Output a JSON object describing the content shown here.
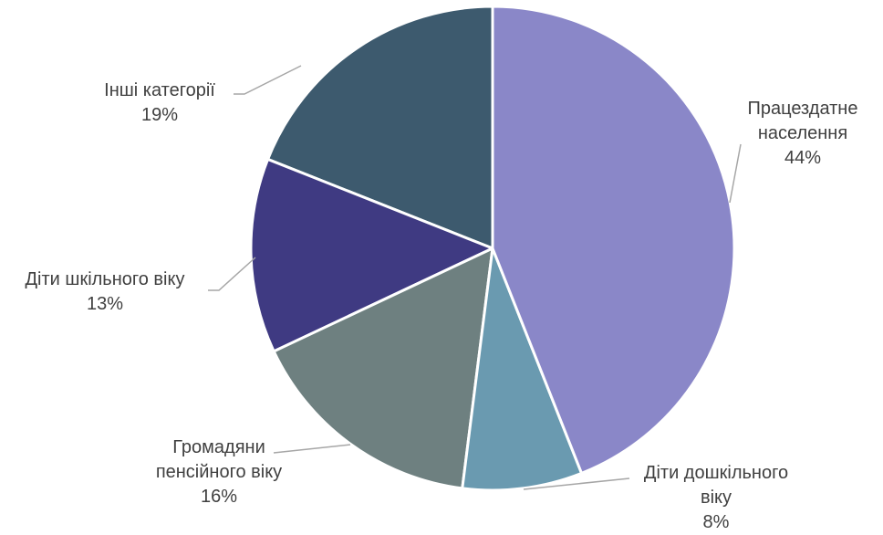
{
  "chart_data": {
    "type": "pie",
    "categories": [
      "Працездатне населення",
      "Діти дошкільного віку",
      "Громадяни пенсійного віку",
      "Діти шкільного віку",
      "Інші категорії"
    ],
    "values": [
      44,
      8,
      16,
      13,
      19
    ],
    "value_labels": [
      "44%",
      "8%",
      "16%",
      "13%",
      "19%"
    ],
    "colors": [
      "#8a87c8",
      "#6a9ab0",
      "#6e8080",
      "#3f3a82",
      "#3d5a6e"
    ]
  }
}
